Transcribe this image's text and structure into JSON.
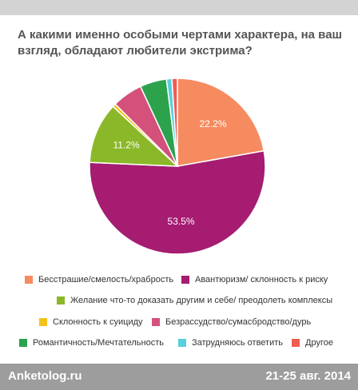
{
  "title": "А какими именно особыми чертами характера, на ваш взгляд, обладают любители экстрима?",
  "chart_data": {
    "type": "pie",
    "title": "А какими именно особыми чертами характера, на ваш взгляд, обладают любители экстрима?",
    "slices": [
      {
        "label": "Бесстрашие/смелость/храбрость",
        "value": 22.2,
        "value_label": "22.2%",
        "color": "#f58b5f"
      },
      {
        "label": "Авантюризм/ склонность к риску",
        "value": 53.5,
        "value_label": "53.5%",
        "color": "#a51c71"
      },
      {
        "label": "Желание что-то доказать другим и себе/ преодолеть комплексы",
        "value": 11.2,
        "value_label": "11.2%",
        "color": "#8bb828"
      },
      {
        "label": "Склонность к суициду",
        "value": 0.6,
        "value_label": "",
        "color": "#f4c21a"
      },
      {
        "label": "Безрассудство/сумасбродство/дурь",
        "value": 5.6,
        "value_label": "",
        "color": "#d3517a"
      },
      {
        "label": "Романтичность/Мечтательность",
        "value": 4.9,
        "value_label": "",
        "color": "#2ca24d"
      },
      {
        "label": "Затрудняюсь ответить",
        "value": 1.0,
        "value_label": "",
        "color": "#58cfde"
      },
      {
        "label": "Другое",
        "value": 1.0,
        "value_label": "",
        "color": "#f25a52"
      }
    ],
    "legend_position": "bottom",
    "label_color": "#ffffff"
  },
  "footer": {
    "brand": "Anketolog.ru",
    "date": "21-25 авг. 2014"
  }
}
